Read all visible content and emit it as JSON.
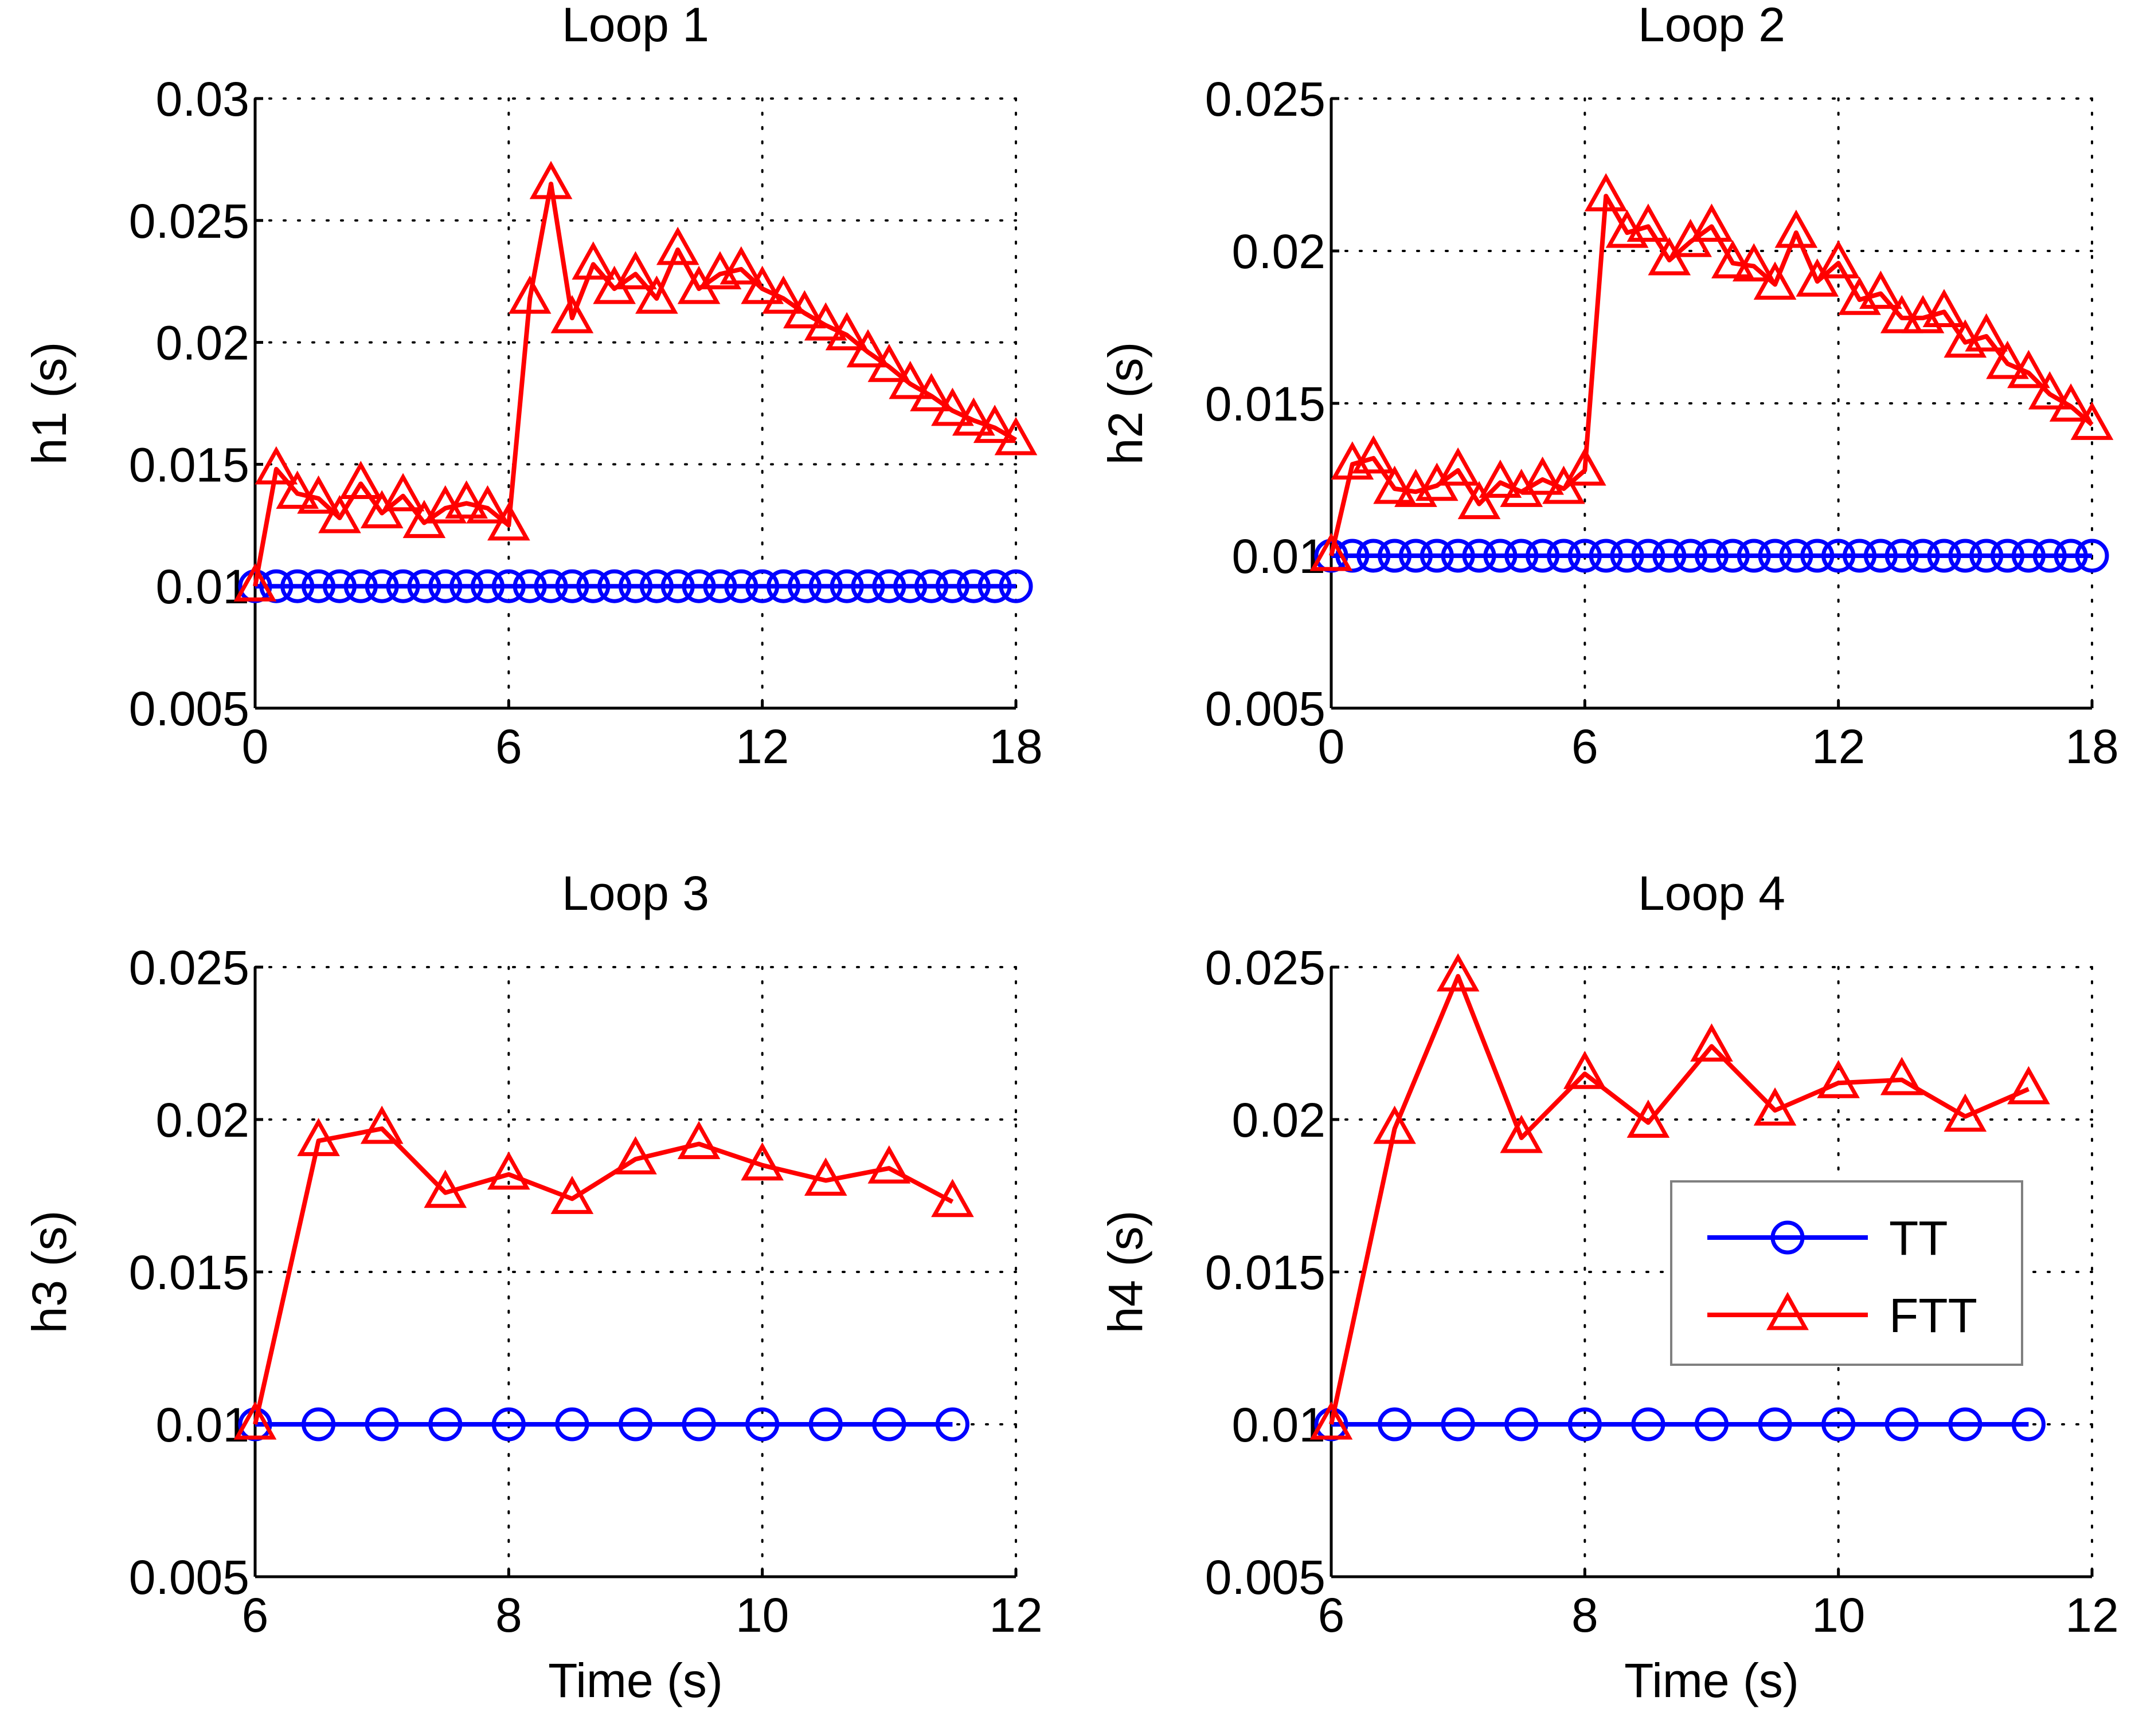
{
  "colors": {
    "tt": "#0000ff",
    "ftt": "#ff0000",
    "axis": "#000000",
    "background": "#ffffff"
  },
  "legend": {
    "placement": "inside-right of Loop 4",
    "entries": [
      {
        "name": "TT",
        "marker": "circle",
        "color": "#0000ff"
      },
      {
        "name": "FTT",
        "marker": "triangle",
        "color": "#ff0000"
      }
    ]
  },
  "chart_data": [
    {
      "type": "line",
      "title": "Loop 1",
      "xlabel": "",
      "ylabel": "h1 (s)",
      "xlim": [
        0,
        18
      ],
      "ylim": [
        0.005,
        0.03
      ],
      "xticks": [
        0,
        6,
        12,
        18
      ],
      "yticks": [
        0.005,
        0.01,
        0.015,
        0.02,
        0.025,
        0.03
      ],
      "xtick_labels": [
        "0",
        "6",
        "12",
        "18"
      ],
      "ytick_labels": [
        "0.005",
        "0.01",
        "0.015",
        "0.02",
        "0.025",
        "0.03"
      ],
      "grid": true,
      "series": [
        {
          "name": "TT",
          "marker": "circle",
          "color": "#0000ff",
          "x": [
            0,
            0.5,
            1,
            1.5,
            2,
            2.5,
            3,
            3.5,
            4,
            4.5,
            5,
            5.5,
            6,
            6.5,
            7,
            7.5,
            8,
            8.5,
            9,
            9.5,
            10,
            10.5,
            11,
            11.5,
            12,
            12.5,
            13,
            13.5,
            14,
            14.5,
            15,
            15.5,
            16,
            16.5,
            17,
            17.5,
            18
          ],
          "y": [
            0.01,
            0.01,
            0.01,
            0.01,
            0.01,
            0.01,
            0.01,
            0.01,
            0.01,
            0.01,
            0.01,
            0.01,
            0.01,
            0.01,
            0.01,
            0.01,
            0.01,
            0.01,
            0.01,
            0.01,
            0.01,
            0.01,
            0.01,
            0.01,
            0.01,
            0.01,
            0.01,
            0.01,
            0.01,
            0.01,
            0.01,
            0.01,
            0.01,
            0.01,
            0.01,
            0.01,
            0.01
          ]
        },
        {
          "name": "FTT",
          "marker": "triangle",
          "color": "#ff0000",
          "x": [
            0,
            0.5,
            1,
            1.5,
            2,
            2.5,
            3,
            3.5,
            4,
            4.5,
            5,
            5.5,
            6,
            6.5,
            7,
            7.5,
            8,
            8.5,
            9,
            9.5,
            10,
            10.5,
            11,
            11.5,
            12,
            12.5,
            13,
            13.5,
            14,
            14.5,
            15,
            15.5,
            16,
            16.5,
            17,
            17.5,
            18
          ],
          "y": [
            0.01,
            0.0148,
            0.0138,
            0.0136,
            0.0128,
            0.0142,
            0.013,
            0.0137,
            0.0126,
            0.0132,
            0.0134,
            0.0132,
            0.0125,
            0.0218,
            0.0265,
            0.021,
            0.0232,
            0.0222,
            0.0228,
            0.0218,
            0.0238,
            0.0222,
            0.0228,
            0.023,
            0.0222,
            0.0218,
            0.0212,
            0.0207,
            0.0203,
            0.0196,
            0.019,
            0.0183,
            0.0178,
            0.0172,
            0.0168,
            0.0165,
            0.016
          ]
        }
      ]
    },
    {
      "type": "line",
      "title": "Loop 2",
      "xlabel": "",
      "ylabel": "h2 (s)",
      "xlim": [
        0,
        18
      ],
      "ylim": [
        0.005,
        0.025
      ],
      "xticks": [
        0,
        6,
        12,
        18
      ],
      "yticks": [
        0.005,
        0.01,
        0.015,
        0.02,
        0.025
      ],
      "xtick_labels": [
        "0",
        "6",
        "12",
        "18"
      ],
      "ytick_labels": [
        "0.005",
        "0.01",
        "0.015",
        "0.02",
        "0.025"
      ],
      "grid": true,
      "series": [
        {
          "name": "TT",
          "marker": "circle",
          "color": "#0000ff",
          "x": [
            0,
            0.5,
            1,
            1.5,
            2,
            2.5,
            3,
            3.5,
            4,
            4.5,
            5,
            5.5,
            6,
            6.5,
            7,
            7.5,
            8,
            8.5,
            9,
            9.5,
            10,
            10.5,
            11,
            11.5,
            12,
            12.5,
            13,
            13.5,
            14,
            14.5,
            15,
            15.5,
            16,
            16.5,
            17,
            17.5,
            18
          ],
          "y": [
            0.01,
            0.01,
            0.01,
            0.01,
            0.01,
            0.01,
            0.01,
            0.01,
            0.01,
            0.01,
            0.01,
            0.01,
            0.01,
            0.01,
            0.01,
            0.01,
            0.01,
            0.01,
            0.01,
            0.01,
            0.01,
            0.01,
            0.01,
            0.01,
            0.01,
            0.01,
            0.01,
            0.01,
            0.01,
            0.01,
            0.01,
            0.01,
            0.01,
            0.01,
            0.01,
            0.01,
            0.01
          ]
        },
        {
          "name": "FTT",
          "marker": "triangle",
          "color": "#ff0000",
          "x": [
            0,
            0.5,
            1,
            1.5,
            2,
            2.5,
            3,
            3.5,
            4,
            4.5,
            5,
            5.5,
            6,
            6.5,
            7,
            7.5,
            8,
            8.5,
            9,
            9.5,
            10,
            10.5,
            11,
            11.5,
            12,
            12.5,
            13,
            13.5,
            14,
            14.5,
            15,
            15.5,
            16,
            16.5,
            17,
            17.5,
            18
          ],
          "y": [
            0.01,
            0.013,
            0.0132,
            0.0122,
            0.0121,
            0.0123,
            0.0128,
            0.0117,
            0.0124,
            0.0121,
            0.0125,
            0.0122,
            0.0128,
            0.0218,
            0.0206,
            0.0208,
            0.0197,
            0.0203,
            0.0208,
            0.0196,
            0.0195,
            0.0189,
            0.0206,
            0.019,
            0.0196,
            0.0184,
            0.0186,
            0.0178,
            0.0178,
            0.018,
            0.017,
            0.0172,
            0.0163,
            0.016,
            0.0153,
            0.0149,
            0.0143
          ]
        }
      ]
    },
    {
      "type": "line",
      "title": "Loop 3",
      "xlabel": "Time (s)",
      "ylabel": "h3 (s)",
      "xlim": [
        6,
        12
      ],
      "ylim": [
        0.005,
        0.025
      ],
      "xticks": [
        6,
        8,
        10,
        12
      ],
      "yticks": [
        0.005,
        0.01,
        0.015,
        0.02,
        0.025
      ],
      "xtick_labels": [
        "6",
        "8",
        "10",
        "12"
      ],
      "ytick_labels": [
        "0.005",
        "0.01",
        "0.015",
        "0.02",
        "0.025"
      ],
      "grid": true,
      "series": [
        {
          "name": "TT",
          "marker": "circle",
          "color": "#0000ff",
          "x": [
            6,
            6.5,
            7,
            7.5,
            8,
            8.5,
            9,
            9.5,
            10,
            10.5,
            11,
            11.5
          ],
          "y": [
            0.01,
            0.01,
            0.01,
            0.01,
            0.01,
            0.01,
            0.01,
            0.01,
            0.01,
            0.01,
            0.01,
            0.01
          ]
        },
        {
          "name": "FTT",
          "marker": "triangle",
          "color": "#ff0000",
          "x": [
            6,
            6.5,
            7,
            7.5,
            8,
            8.5,
            9,
            9.5,
            10,
            10.5,
            11,
            11.5
          ],
          "y": [
            0.01,
            0.0193,
            0.0197,
            0.0176,
            0.0182,
            0.0174,
            0.0187,
            0.0192,
            0.0185,
            0.018,
            0.0184,
            0.0173
          ]
        }
      ]
    },
    {
      "type": "line",
      "title": "Loop 4",
      "xlabel": "Time (s)",
      "ylabel": "h4 (s)",
      "xlim": [
        6,
        12
      ],
      "ylim": [
        0.005,
        0.025
      ],
      "xticks": [
        6,
        8,
        10,
        12
      ],
      "yticks": [
        0.005,
        0.01,
        0.015,
        0.02,
        0.025
      ],
      "xtick_labels": [
        "6",
        "8",
        "10",
        "12"
      ],
      "ytick_labels": [
        "0.005",
        "0.01",
        "0.015",
        "0.02",
        "0.025"
      ],
      "grid": true,
      "series": [
        {
          "name": "TT",
          "marker": "circle",
          "color": "#0000ff",
          "x": [
            6,
            6.5,
            7,
            7.5,
            8,
            8.5,
            9,
            9.5,
            10,
            10.5,
            11,
            11.5
          ],
          "y": [
            0.01,
            0.01,
            0.01,
            0.01,
            0.01,
            0.01,
            0.01,
            0.01,
            0.01,
            0.01,
            0.01,
            0.01
          ]
        },
        {
          "name": "FTT",
          "marker": "triangle",
          "color": "#ff0000",
          "x": [
            6,
            6.5,
            7,
            7.5,
            8,
            8.5,
            9,
            9.5,
            10,
            10.5,
            11,
            11.5
          ],
          "y": [
            0.01,
            0.0197,
            0.0247,
            0.0194,
            0.0215,
            0.0199,
            0.0224,
            0.0203,
            0.0212,
            0.0213,
            0.0201,
            0.021
          ]
        }
      ]
    }
  ]
}
